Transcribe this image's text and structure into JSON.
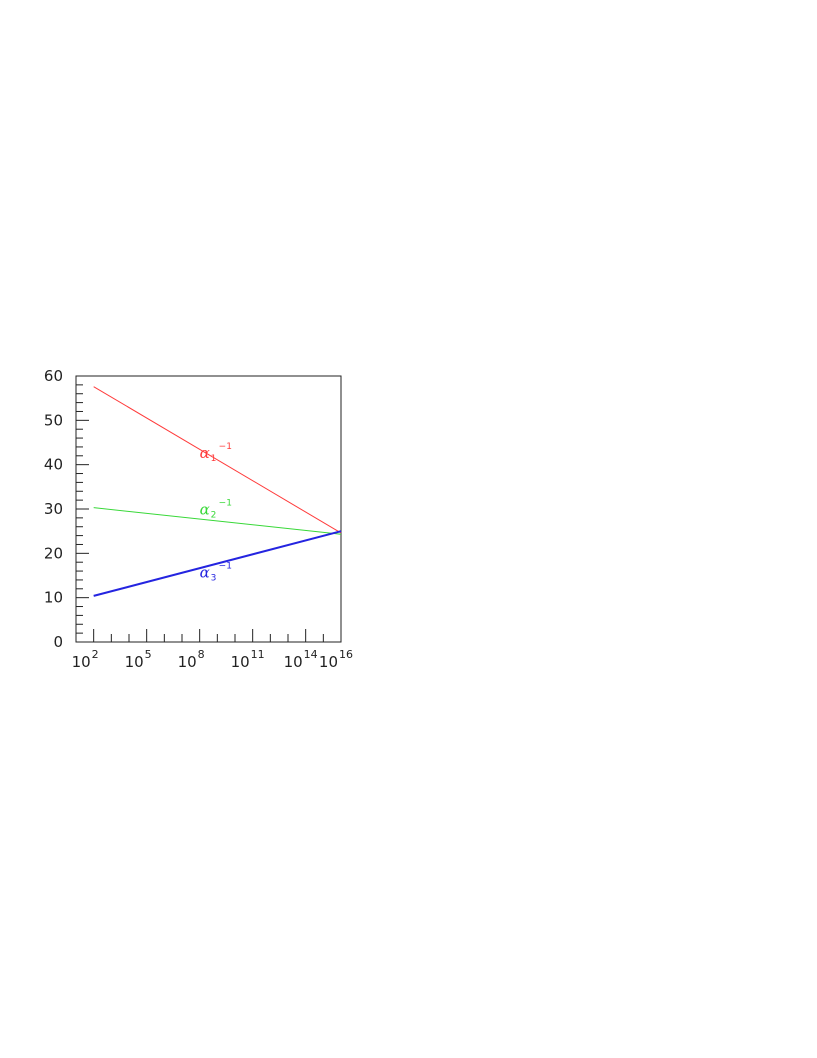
{
  "chart_data": {
    "type": "line",
    "x_scale": "log",
    "xlim": [
      10.0,
      1e+16
    ],
    "ylim": [
      0,
      60
    ],
    "y_ticks": [
      {
        "value": 0,
        "label": "0"
      },
      {
        "value": 10,
        "label": "10"
      },
      {
        "value": 20,
        "label": "20"
      },
      {
        "value": 30,
        "label": "30"
      },
      {
        "value": 40,
        "label": "40"
      },
      {
        "value": 50,
        "label": "50"
      },
      {
        "value": 60,
        "label": "60"
      }
    ],
    "x_ticks": [
      {
        "value": 100.0,
        "base": "10",
        "exp": "2"
      },
      {
        "value": 100000.0,
        "base": "10",
        "exp": "5"
      },
      {
        "value": 100000000.0,
        "base": "10",
        "exp": "8"
      },
      {
        "value": 100000000000.0,
        "base": "10",
        "exp": "11"
      },
      {
        "value": 100000000000000.0,
        "base": "10",
        "exp": "14"
      },
      {
        "value": 1e+16,
        "base": "10",
        "exp": "16"
      }
    ],
    "series": [
      {
        "name": "α1⁻¹",
        "symbol": "α",
        "sub": "1",
        "sup": "−1",
        "color": "#ff3b3b",
        "stroke": 1,
        "x": [
          100.0,
          1e+16
        ],
        "y": [
          57.6,
          24.6
        ],
        "label_at": [
          100000000.0,
          41.5
        ]
      },
      {
        "name": "α2⁻¹",
        "symbol": "α",
        "sub": "2",
        "sup": "−1",
        "color": "#38d838",
        "stroke": 1,
        "x": [
          100.0,
          1e+16
        ],
        "y": [
          30.3,
          24.3
        ],
        "label_at": [
          100000000.0,
          28.8
        ]
      },
      {
        "name": "α3⁻¹",
        "symbol": "α",
        "sub": "3",
        "sup": "−1",
        "color": "#2424e0",
        "stroke": 2,
        "x": [
          100.0,
          1e+16
        ],
        "y": [
          10.4,
          25.0
        ],
        "label_at": [
          100000000.0,
          14.5
        ]
      }
    ],
    "grid": false,
    "legend": "inline labels"
  }
}
